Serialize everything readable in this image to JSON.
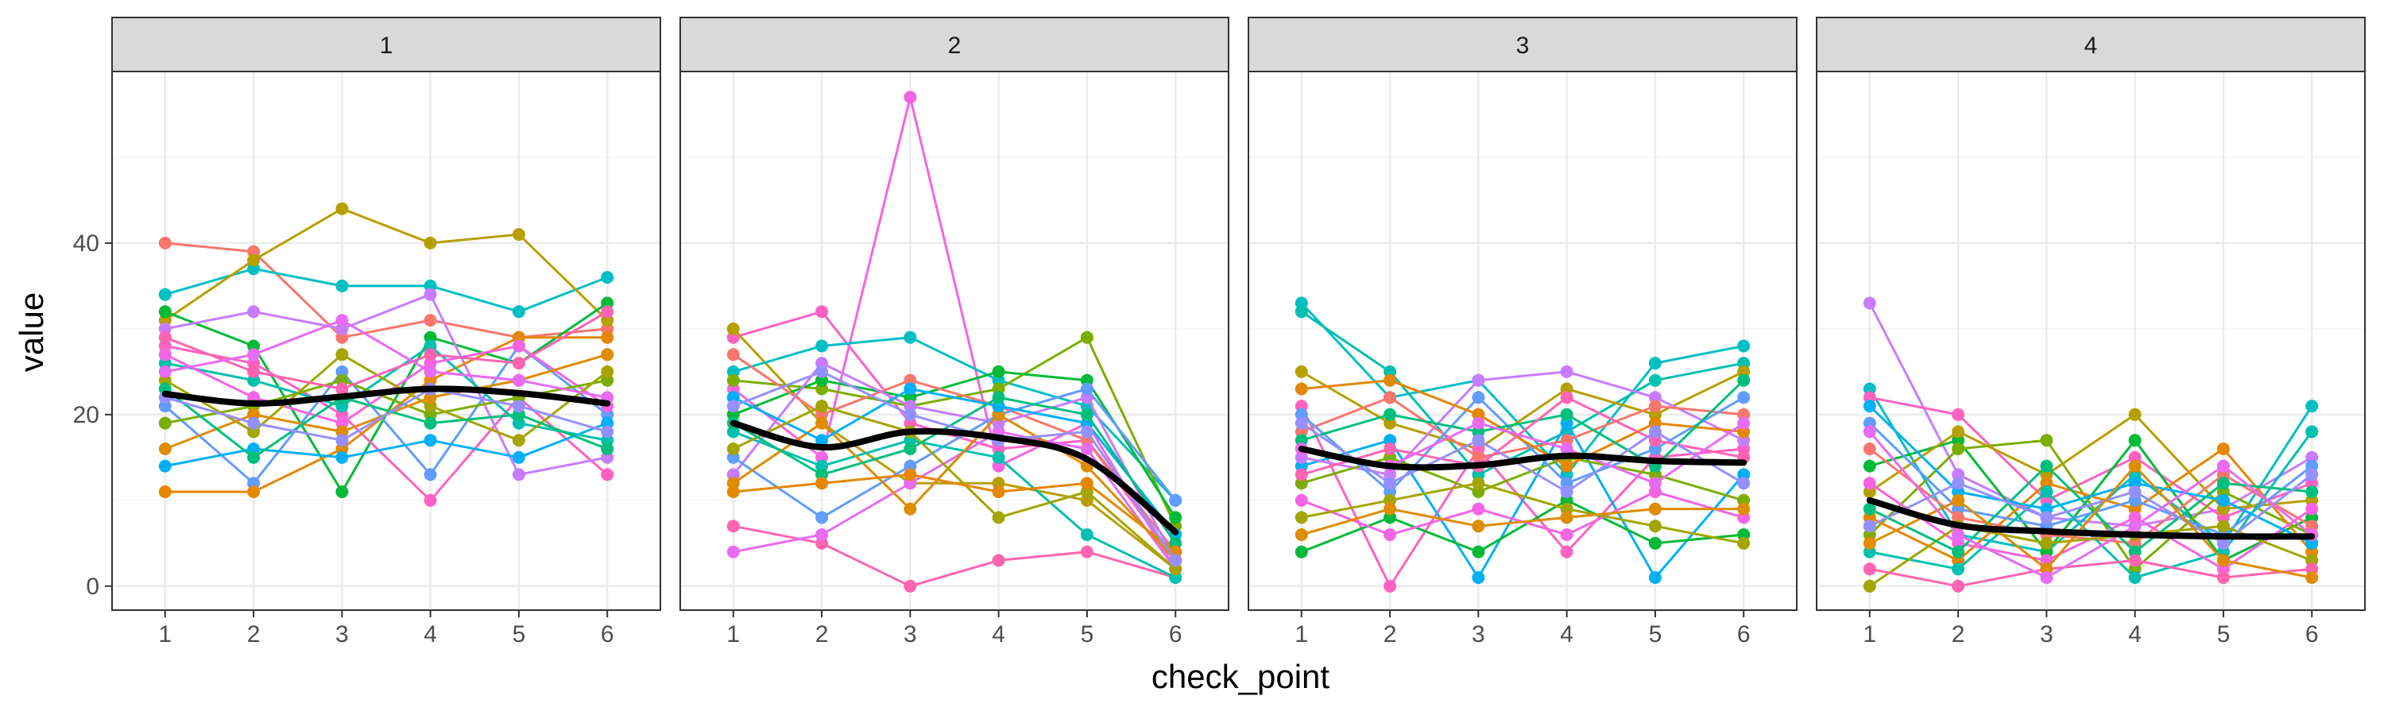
{
  "chart_data": {
    "type": "line",
    "xlabel": "check_point",
    "ylabel": "value",
    "x": [
      1,
      2,
      3,
      4,
      5,
      6
    ],
    "xlim": [
      0.4,
      6.6
    ],
    "ylim": [
      -2.8,
      60
    ],
    "y_ticks": [
      0,
      20,
      40
    ],
    "grid": true,
    "legend": "none",
    "panels": [
      {
        "label": "1",
        "smooth": [
          22.4,
          21.3,
          22.1,
          23.0,
          22.5,
          21.3
        ],
        "series": [
          {
            "color": "#F8766D",
            "values": [
              40,
              39,
              29,
              31,
              29,
              30
            ]
          },
          {
            "color": "#00BFC4",
            "values": [
              34,
              37,
              35,
              35,
              32,
              36
            ]
          },
          {
            "color": "#B79F00",
            "values": [
              31,
              38,
              44,
              40,
              41,
              31
            ]
          },
          {
            "color": "#00BA38",
            "values": [
              32,
              28,
              11,
              29,
              26,
              33
            ]
          },
          {
            "color": "#FF61C3",
            "values": [
              28,
              26,
              20,
              10,
              22,
              13
            ]
          },
          {
            "color": "#C77CFF",
            "values": [
              30,
              32,
              30,
              34,
              13,
              15
            ]
          },
          {
            "color": "#619CFF",
            "values": [
              21,
              12,
              25,
              13,
              28,
              20
            ]
          },
          {
            "color": "#E58700",
            "values": [
              11,
              11,
              16,
              24,
              29,
              29
            ]
          },
          {
            "color": "#00C0AF",
            "values": [
              26,
              24,
              21,
              28,
              19,
              17
            ]
          },
          {
            "color": "#F564E3",
            "values": [
              27,
              22,
              19,
              26,
              28,
              21
            ]
          },
          {
            "color": "#7CAE00",
            "values": [
              19,
              21,
              24,
              20,
              22,
              24
            ]
          },
          {
            "color": "#00B0F6",
            "values": [
              14,
              16,
              15,
              17,
              15,
              19
            ]
          },
          {
            "color": "#A3A500",
            "values": [
              24,
              18,
              27,
              21,
              17,
              25
            ]
          },
          {
            "color": "#DE8C00",
            "values": [
              16,
              20,
              18,
              22,
              24,
              27
            ]
          },
          {
            "color": "#00BF7D",
            "values": [
              23,
              15,
              22,
              19,
              20,
              16
            ]
          },
          {
            "color": "#FF64B0",
            "values": [
              29,
              25,
              23,
              27,
              26,
              32
            ]
          },
          {
            "color": "#9590FF",
            "values": [
              22,
              19,
              17,
              23,
              21,
              18
            ]
          },
          {
            "color": "#E76BF3",
            "values": [
              25,
              27,
              31,
              25,
              24,
              22
            ]
          }
        ]
      },
      {
        "label": "2",
        "smooth": [
          19.0,
          16.2,
          18.0,
          17.3,
          14.8,
          6.3
        ],
        "series": [
          {
            "color": "#FF61C3",
            "values": [
              29,
              32,
              19,
              16,
              17,
              3
            ]
          },
          {
            "color": "#F564E3",
            "values": [
              23,
              15,
              57,
              14,
              19,
              2
            ]
          },
          {
            "color": "#B79F00",
            "values": [
              30,
              19,
              12,
              12,
              10,
              2
            ]
          },
          {
            "color": "#00BFC4",
            "values": [
              25,
              28,
              29,
              24,
              21,
              10
            ]
          },
          {
            "color": "#7CAE00",
            "values": [
              24,
              23,
              21,
              23,
              29,
              7
            ]
          },
          {
            "color": "#00BA38",
            "values": [
              20,
              24,
              22,
              25,
              24,
              8
            ]
          },
          {
            "color": "#F8766D",
            "values": [
              27,
              20,
              24,
              21,
              17,
              4
            ]
          },
          {
            "color": "#FF64B0",
            "values": [
              7,
              5,
              0,
              3,
              4,
              1
            ]
          },
          {
            "color": "#E76BF3",
            "values": [
              4,
              6,
              12,
              18,
              16,
              2
            ]
          },
          {
            "color": "#C77CFF",
            "values": [
              13,
              26,
              21,
              19,
              22,
              3
            ]
          },
          {
            "color": "#619CFF",
            "values": [
              15,
              8,
              14,
              20,
              23,
              10
            ]
          },
          {
            "color": "#00C0AF",
            "values": [
              18,
              14,
              17,
              15,
              6,
              1
            ]
          },
          {
            "color": "#DE8C00",
            "values": [
              12,
              19,
              9,
              20,
              14,
              3
            ]
          },
          {
            "color": "#00B0F6",
            "values": [
              22,
              17,
              23,
              21,
              19,
              6
            ]
          },
          {
            "color": "#A3A500",
            "values": [
              16,
              21,
              18,
              8,
              11,
              2
            ]
          },
          {
            "color": "#00BF7D",
            "values": [
              19,
              13,
              16,
              22,
              20,
              5
            ]
          },
          {
            "color": "#E58700",
            "values": [
              11,
              12,
              13,
              11,
              12,
              4
            ]
          },
          {
            "color": "#9590FF",
            "values": [
              21,
              25,
              20,
              17,
              18,
              3
            ]
          }
        ]
      },
      {
        "label": "3",
        "smooth": [
          16.0,
          14.0,
          14.1,
          15.2,
          14.6,
          14.4
        ],
        "series": [
          {
            "color": "#00BFC4",
            "values": [
              33,
              22,
              24,
              13,
              26,
              28
            ]
          },
          {
            "color": "#00C0AF",
            "values": [
              32,
              25,
              13,
              18,
              24,
              26
            ]
          },
          {
            "color": "#B79F00",
            "values": [
              25,
              19,
              16,
              23,
              20,
              25
            ]
          },
          {
            "color": "#FF61C3",
            "values": [
              21,
              0,
              16,
              4,
              15,
              16
            ]
          },
          {
            "color": "#00B0F6",
            "values": [
              14,
              17,
              1,
              19,
              1,
              13
            ]
          },
          {
            "color": "#C77CFF",
            "values": [
              15,
              13,
              24,
              25,
              22,
              17
            ]
          },
          {
            "color": "#00BA38",
            "values": [
              4,
              8,
              4,
              10,
              5,
              6
            ]
          },
          {
            "color": "#F8766D",
            "values": [
              18,
              22,
              15,
              17,
              21,
              20
            ]
          },
          {
            "color": "#7CAE00",
            "values": [
              12,
              15,
              11,
              15,
              13,
              10
            ]
          },
          {
            "color": "#619CFF",
            "values": [
              20,
              11,
              22,
              12,
              16,
              22
            ]
          },
          {
            "color": "#F564E3",
            "values": [
              10,
              6,
              9,
              6,
              11,
              8
            ]
          },
          {
            "color": "#E58700",
            "values": [
              23,
              24,
              20,
              14,
              19,
              18
            ]
          },
          {
            "color": "#A3A500",
            "values": [
              8,
              10,
              12,
              9,
              7,
              5
            ]
          },
          {
            "color": "#00BF7D",
            "values": [
              17,
              20,
              18,
              20,
              14,
              24
            ]
          },
          {
            "color": "#FF64B0",
            "values": [
              13,
              16,
              14,
              22,
              17,
              15
            ]
          },
          {
            "color": "#9590FF",
            "values": [
              19,
              12,
              17,
              11,
              18,
              12
            ]
          },
          {
            "color": "#DE8C00",
            "values": [
              6,
              9,
              7,
              8,
              9,
              9
            ]
          },
          {
            "color": "#E76BF3",
            "values": [
              16,
              14,
              19,
              16,
              12,
              19
            ]
          }
        ]
      },
      {
        "label": "4",
        "smooth": [
          10.0,
          7.1,
          6.4,
          6.0,
          5.8,
          5.8
        ],
        "series": [
          {
            "color": "#C77CFF",
            "values": [
              33,
              13,
              8,
              7,
              9,
              15
            ]
          },
          {
            "color": "#00BFC4",
            "values": [
              23,
              6,
              4,
              13,
              5,
              21
            ]
          },
          {
            "color": "#FF61C3",
            "values": [
              22,
              20,
              10,
              15,
              8,
              12
            ]
          },
          {
            "color": "#00BA38",
            "values": [
              14,
              17,
              4,
              17,
              3,
              8
            ]
          },
          {
            "color": "#7CAE00",
            "values": [
              6,
              16,
              17,
              2,
              11,
              6
            ]
          },
          {
            "color": "#B79F00",
            "values": [
              11,
              18,
              13,
              20,
              9,
              10
            ]
          },
          {
            "color": "#E58700",
            "values": [
              8,
              3,
              12,
              9,
              16,
              4
            ]
          },
          {
            "color": "#619CFF",
            "values": [
              19,
              9,
              7,
              10,
              6,
              14
            ]
          },
          {
            "color": "#F8766D",
            "values": [
              16,
              8,
              6,
              5,
              13,
              7
            ]
          },
          {
            "color": "#00C0AF",
            "values": [
              4,
              2,
              11,
              1,
              4,
              18
            ]
          },
          {
            "color": "#F564E3",
            "values": [
              12,
              5,
              3,
              8,
              2,
              9
            ]
          },
          {
            "color": "#00B0F6",
            "values": [
              21,
              11,
              9,
              12,
              10,
              5
            ]
          },
          {
            "color": "#A3A500",
            "values": [
              0,
              7,
              5,
              6,
              7,
              3
            ]
          },
          {
            "color": "#00BF7D",
            "values": [
              9,
              4,
              14,
              4,
              12,
              11
            ]
          },
          {
            "color": "#FF64B0",
            "values": [
              2,
              0,
              2,
              3,
              1,
              2
            ]
          },
          {
            "color": "#9590FF",
            "values": [
              7,
              12,
              8,
              11,
              5,
              13
            ]
          },
          {
            "color": "#DE8C00",
            "values": [
              5,
              10,
              2,
              14,
              3,
              1
            ]
          },
          {
            "color": "#E76BF3",
            "values": [
              18,
              6,
              1,
              7,
              14,
              6
            ]
          }
        ]
      }
    ]
  },
  "colors": {
    "smooth_line": "#000000",
    "strip_fill": "#d9d9d9",
    "panel_border": "#333333",
    "grid_major": "#ebebeb",
    "grid_minor": "#f5f5f5"
  }
}
